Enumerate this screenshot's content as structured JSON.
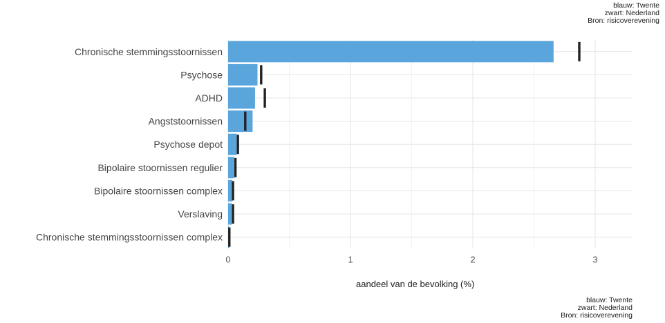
{
  "chart_data": {
    "type": "bar",
    "orientation": "horizontal",
    "xlabel": "aandeel van de bevolking (%)",
    "xlim": [
      0,
      3.3
    ],
    "xticks": [
      "0",
      "1",
      "2",
      "3"
    ],
    "grid": true,
    "categories": [
      "Chronische stemmingsstoornissen",
      "Psychose",
      "ADHD",
      "Angststoornissen",
      "Psychose depot",
      "Bipolaire stoornissen regulier",
      "Bipolaire stoornissen complex",
      "Verslaving",
      "Chronische stemmingsstoornissen complex"
    ],
    "series": [
      {
        "values": [
          2.66,
          0.24,
          0.22,
          0.2,
          0.07,
          0.05,
          0.035,
          0.03,
          0.01
        ],
        "color": "#5aa5dc"
      },
      {
        "values": [
          2.87,
          0.27,
          0.3,
          0.14,
          0.08,
          0.06,
          0.04,
          0.04,
          0.01
        ],
        "color": "#222222",
        "marker": "tick"
      }
    ],
    "caption": [
      "blauw: Twente",
      "zwart: Nederland",
      "Bron: risicoverevening"
    ]
  }
}
